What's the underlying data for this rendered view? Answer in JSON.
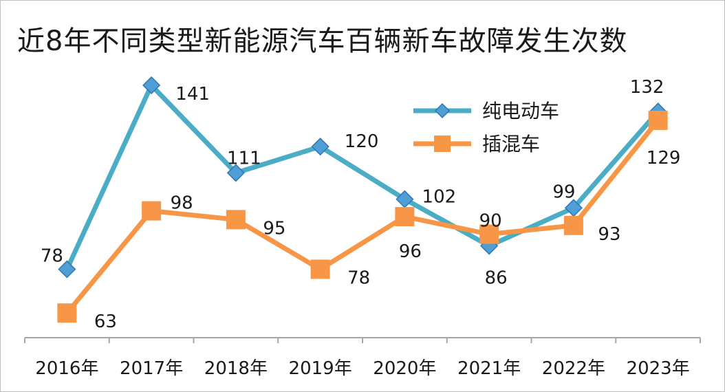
{
  "chart_data": {
    "type": "line",
    "title": "近8年不同类型新能源汽车百辆新车故障发生次数",
    "categories": [
      "2016年",
      "2017年",
      "2018年",
      "2019年",
      "2020年",
      "2021年",
      "2022年",
      "2023年"
    ],
    "series": [
      {
        "name": "纯电动车",
        "values": [
          78,
          141,
          111,
          120,
          102,
          86,
          99,
          132
        ],
        "color": "#4bacc6",
        "marker": "diamond",
        "marker_color": "#4f9fd6"
      },
      {
        "name": "插混车",
        "values": [
          63,
          98,
          95,
          78,
          96,
          90,
          93,
          129
        ],
        "color": "#f79646",
        "marker": "square",
        "marker_color": "#f79646"
      }
    ],
    "ylim": [
      40,
      150
    ],
    "grid": false,
    "legend": "top-right",
    "xlabel": "",
    "ylabel": ""
  }
}
